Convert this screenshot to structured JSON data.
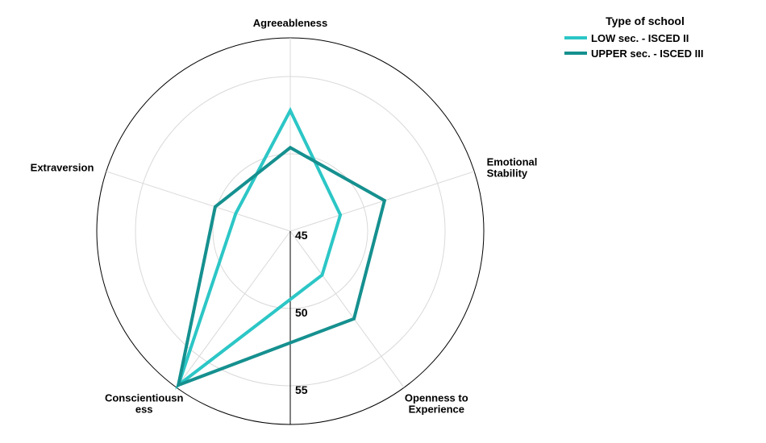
{
  "chart_data": {
    "type": "radar",
    "title": "",
    "axes": [
      {
        "label_lines": [
          "Agreeableness"
        ]
      },
      {
        "label_lines": [
          "Emotional",
          "Stability"
        ]
      },
      {
        "label_lines": [
          "Openness to",
          "Experience"
        ]
      },
      {
        "label_lines": [
          "Conscientiousn",
          "ess"
        ]
      },
      {
        "label_lines": [
          "Extraversion"
        ]
      }
    ],
    "radial_ticks": [
      "45",
      "50",
      "55"
    ],
    "radial_range": [
      45,
      57.5
    ],
    "grid": true,
    "legend": {
      "title": "Type of school",
      "placement": "top-right"
    },
    "series": [
      {
        "name": "LOW sec. - ISCED II",
        "color": "#2cc6c6",
        "values": [
          52.8,
          48.4,
          48.5,
          57.3,
          48.7
        ]
      },
      {
        "name": "UPPER sec. - ISCED III",
        "color": "#15908f",
        "values": [
          50.4,
          51.4,
          52.0,
          57.3,
          50.1
        ]
      }
    ]
  }
}
